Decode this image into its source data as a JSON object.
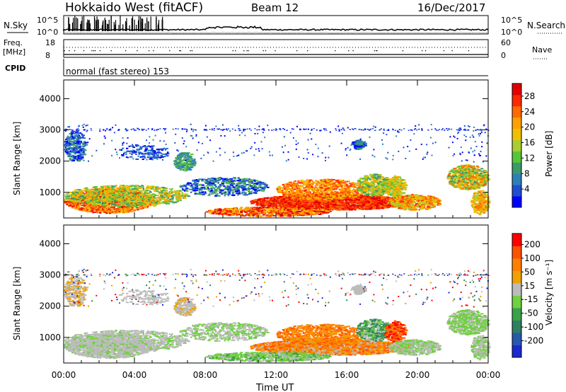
{
  "header": {
    "title": "Hokkaido West (fitACF)",
    "beam": "Beam 12",
    "date": "16/Dec/2017"
  },
  "top_panels": {
    "nsky_label": "N.Sky",
    "nsearch_label": "N.Search",
    "nsky_ticks": [
      "10^5",
      "10^0"
    ],
    "nsky_ticks_right": [
      "10^5",
      "10^0"
    ],
    "freq_label_1": "Freq.",
    "freq_label_2": "[MHz]",
    "freq_ticks": [
      "18",
      "8"
    ],
    "nave_label": "Nave",
    "nave_ticks": [
      "60",
      "0"
    ],
    "cpid_label": "CPID",
    "cpid_text": "normal (fast stereo) 153"
  },
  "chart_data": [
    {
      "type": "heatmap",
      "title": "",
      "xlabel": "",
      "ylabel": "Slant Range [km]",
      "xlim": [
        0,
        24
      ],
      "ylim": [
        180,
        4600
      ],
      "y_ticks": [
        1000,
        2000,
        3000,
        4000
      ],
      "colorbar": {
        "label": "Power [dB]",
        "ticks": [
          "4",
          "8",
          "12",
          "16",
          "20",
          "24",
          "28"
        ],
        "colors": [
          "#0000ff",
          "#1f4fd0",
          "#2d7fb8",
          "#3a9a6a",
          "#58c438",
          "#aacc30",
          "#f0c000",
          "#ffa000",
          "#ff6a00",
          "#ff2800",
          "#e00000"
        ]
      }
    },
    {
      "type": "heatmap",
      "title": "",
      "xlabel": "Time UT",
      "ylabel": "Slant Range [km]",
      "xlim": [
        0,
        24
      ],
      "ylim": [
        180,
        4600
      ],
      "y_ticks": [
        1000,
        2000,
        3000,
        4000
      ],
      "x_ticks": [
        "00:00",
        "04:00",
        "08:00",
        "12:00",
        "16:00",
        "20:00",
        "00:00"
      ],
      "colorbar": {
        "label": "Velocity [m s⁻¹]",
        "ticks": [
          "200",
          "100",
          "50",
          "15",
          "-15",
          "-50",
          "-100",
          "-200"
        ],
        "colors": [
          "#1a2ad0",
          "#2858b0",
          "#2f8060",
          "#3aa04a",
          "#70d040",
          "#bcbcbc",
          "#f0a000",
          "#ff8000",
          "#ff5000",
          "#ff0000"
        ]
      }
    }
  ]
}
